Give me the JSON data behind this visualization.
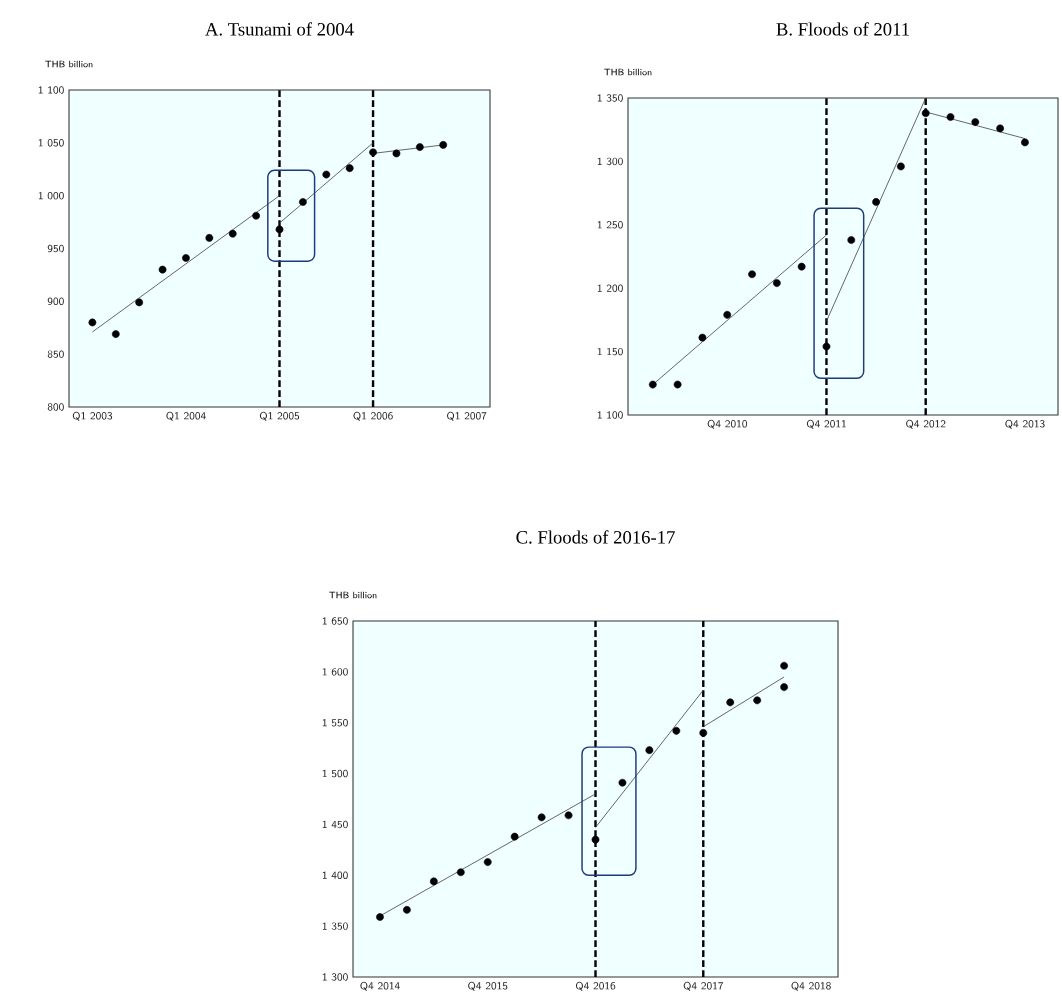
{
  "chart_data": [
    {
      "type": "scatter",
      "title": "A. Tsunami of 2004",
      "ylabel": "THB billion",
      "series": [
        {
          "color": "#000000",
          "marker": "circle",
          "x": [
            "2003-01",
            "2003-04",
            "2003-07",
            "2003-10",
            "2004-01",
            "2004-04",
            "2004-07",
            "2004-10",
            "2005-01",
            "2005-04",
            "2005-07",
            "2005-10",
            "2006-01",
            "2006-04",
            "2006-07",
            "2006-10"
          ],
          "values": [
            880,
            869,
            899,
            930,
            941,
            960,
            964,
            981,
            968,
            994,
            1020,
            1026,
            1041,
            1040,
            1046,
            1048
          ]
        },
        {
          "type": "line",
          "color": "#404040",
          "x": [
            "2003-01",
            "2005-01"
          ],
          "values": [
            871,
            1000
          ]
        },
        {
          "type": "line",
          "color": "#404040",
          "x": [
            "2005-01",
            "2006-01"
          ],
          "values": [
            974,
            1050
          ]
        },
        {
          "type": "line",
          "color": "#404040",
          "x": [
            "2006-01",
            "2006-10"
          ],
          "values": [
            1040,
            1048
          ]
        }
      ],
      "xlim": [
        "2002-10",
        "2007-04"
      ],
      "xticks": [
        {
          "value": "2003-01",
          "label": "Q1 2003"
        },
        {
          "value": "2004-01",
          "label": "Q1 2004"
        },
        {
          "value": "2005-01",
          "label": "Q1 2005"
        },
        {
          "value": "2006-01",
          "label": "Q1 2006"
        },
        {
          "value": "2007-01",
          "label": "Q1 2007"
        }
      ],
      "ylim": [
        800,
        1100
      ],
      "yticks": [
        800,
        850,
        900,
        950,
        {
          "value": 1000,
          "label": "1 000"
        },
        {
          "value": 1050,
          "label": "1 050"
        },
        {
          "value": 1100,
          "label": "1 100"
        }
      ],
      "ref_lines": [
        {
          "axis": "x",
          "value": "2005-01",
          "color": "#000000",
          "line_style": "dashed"
        },
        {
          "axis": "x",
          "value": "2006-01",
          "color": "#000000",
          "line_style": "dashed"
        }
      ]
    },
    {
      "type": "scatter",
      "title": "B. Floods of 2011",
      "ylabel": "THB billion",
      "series": [
        {
          "color": "#000000",
          "marker": "circle",
          "x": [
            "2010-01",
            "2010-04",
            "2010-07",
            "2010-10",
            "2011-01",
            "2011-04",
            "2011-07",
            "2011-10",
            "2012-01",
            "2012-04",
            "2012-07",
            "2012-10",
            "2013-01",
            "2013-04",
            "2013-07",
            "2013-10"
          ],
          "values": [
            1124,
            1124,
            1161,
            1179,
            1211,
            1204,
            1217,
            1154,
            1238,
            1268,
            1296,
            1338,
            1335,
            1331,
            1326,
            1315
          ]
        },
        {
          "type": "line",
          "color": "#404040",
          "x": [
            "2010-01",
            "2011-10"
          ],
          "values": [
            1124,
            1242
          ]
        },
        {
          "type": "line",
          "color": "#404040",
          "x": [
            "2011-10",
            "2012-10"
          ],
          "values": [
            1174,
            1350
          ]
        },
        {
          "type": "line",
          "color": "#404040",
          "x": [
            "2012-10",
            "2013-10"
          ],
          "values": [
            1339,
            1318
          ]
        }
      ],
      "xlim": [
        "2009-10",
        "2014-02"
      ],
      "xticks": [
        {
          "value": "2010-10",
          "label": "Q4 2010"
        },
        {
          "value": "2011-10",
          "label": "Q4 2011"
        },
        {
          "value": "2012-10",
          "label": "Q4 2012"
        },
        {
          "value": "2013-10",
          "label": "Q4 2013"
        }
      ],
      "ylim": [
        1100,
        1350
      ],
      "yticks": [
        {
          "value": 1100,
          "label": "1 100"
        },
        {
          "value": 1150,
          "label": "1 150"
        },
        {
          "value": 1200,
          "label": "1 200"
        },
        {
          "value": 1250,
          "label": "1 250"
        },
        {
          "value": 1300,
          "label": "1 300"
        },
        {
          "value": 1350,
          "label": "1 350"
        }
      ],
      "ref_lines": [
        {
          "axis": "x",
          "value": "2011-10",
          "color": "#000000",
          "line_style": "dashed"
        },
        {
          "axis": "x",
          "value": "2012-10",
          "color": "#000000",
          "line_style": "dashed"
        }
      ]
    },
    {
      "type": "scatter",
      "title": "C. Floods of 2016-17",
      "ylabel": "THB billion",
      "series": [
        {
          "color": "#000000",
          "marker": "circle",
          "x": [
            "2014-10",
            "2015-01",
            "2015-04",
            "2015-07",
            "2015-10",
            "2016-01",
            "2016-04",
            "2016-07",
            "2016-10",
            "2017-01",
            "2017-04",
            "2017-07",
            "2017-10",
            "2018-01",
            "2018-04",
            "2018-07",
            "2018-07"
          ],
          "values": [
            1359,
            1366,
            1394,
            1403,
            1413,
            1438,
            1457,
            1459,
            1435,
            1491,
            1523,
            1542,
            1540,
            1570,
            1572,
            1606,
            1585
          ]
        },
        {
          "type": "line",
          "color": "#404040",
          "x": [
            "2014-10",
            "2016-10"
          ],
          "values": [
            1360,
            1480
          ]
        },
        {
          "type": "line",
          "color": "#404040",
          "x": [
            "2016-10",
            "2017-10"
          ],
          "values": [
            1447,
            1582
          ]
        },
        {
          "type": "line",
          "color": "#404040",
          "x": [
            "2017-10",
            "2018-07"
          ],
          "values": [
            1546,
            1595
          ]
        }
      ],
      "xlim": [
        "2014-07",
        "2019-01"
      ],
      "xticks": [
        {
          "value": "2014-10",
          "label": "Q4 2014"
        },
        {
          "value": "2015-10",
          "label": "Q4 2015"
        },
        {
          "value": "2016-10",
          "label": "Q4 2016"
        },
        {
          "value": "2017-10",
          "label": "Q4 2017"
        },
        {
          "value": "2018-10",
          "label": "Q4 2018"
        }
      ],
      "ylim": [
        1300,
        1650
      ],
      "yticks": [
        {
          "value": 1300,
          "label": "1 300"
        },
        {
          "value": 1350,
          "label": "1 350"
        },
        {
          "value": 1400,
          "label": "1 400"
        },
        {
          "value": 1450,
          "label": "1 450"
        },
        {
          "value": 1500,
          "label": "1 500"
        },
        {
          "value": 1550,
          "label": "1 550"
        },
        {
          "value": 1600,
          "label": "1 600"
        },
        {
          "value": 1650,
          "label": "1 650"
        }
      ],
      "ref_lines": [
        {
          "axis": "x",
          "value": "2016-10",
          "color": "#000000",
          "line_style": "dashed"
        },
        {
          "axis": "x",
          "value": "2017-10",
          "color": "#000000",
          "line_style": "dashed"
        }
      ]
    }
  ]
}
